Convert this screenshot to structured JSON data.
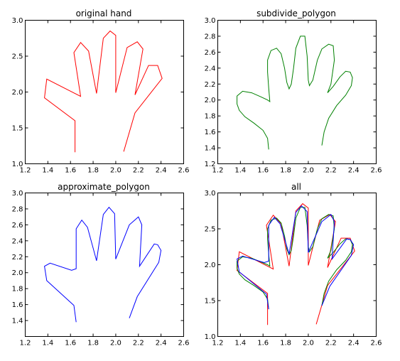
{
  "chart_data": [
    {
      "type": "line",
      "title": "original hand",
      "xlim": [
        1.2,
        2.6
      ],
      "ylim": [
        1.0,
        3.0
      ],
      "xticks": [
        "1.2",
        "1.4",
        "1.6",
        "1.8",
        "2.0",
        "2.2",
        "2.4",
        "2.6"
      ],
      "yticks": [
        "1.0",
        "1.5",
        "2.0",
        "2.5",
        "3.0"
      ],
      "series": [
        {
          "color": "#ff0000",
          "points": [
            [
              1.64,
              1.16
            ],
            [
              1.64,
              1.6
            ],
            [
              1.37,
              1.92
            ],
            [
              1.39,
              2.18
            ],
            [
              1.69,
              1.94
            ],
            [
              1.63,
              2.55
            ],
            [
              1.69,
              2.69
            ],
            [
              1.76,
              2.57
            ],
            [
              1.83,
              1.98
            ],
            [
              1.89,
              2.75
            ],
            [
              1.95,
              2.85
            ],
            [
              2.0,
              2.79
            ],
            [
              2.0,
              1.99
            ],
            [
              2.1,
              2.62
            ],
            [
              2.19,
              2.7
            ],
            [
              2.24,
              2.6
            ],
            [
              2.17,
              1.96
            ],
            [
              2.29,
              2.37
            ],
            [
              2.37,
              2.37
            ],
            [
              2.41,
              2.19
            ],
            [
              2.17,
              1.71
            ],
            [
              2.07,
              1.17
            ]
          ]
        }
      ]
    },
    {
      "type": "line",
      "title": "subdivide_polygon",
      "xlim": [
        1.2,
        2.6
      ],
      "ylim": [
        1.2,
        3.0
      ],
      "xticks": [
        "1.2",
        "1.4",
        "1.6",
        "1.8",
        "2.0",
        "2.2",
        "2.4",
        "2.6"
      ],
      "yticks": [
        "1.2",
        "1.4",
        "1.6",
        "1.8",
        "2.0",
        "2.2",
        "2.4",
        "2.6",
        "2.8",
        "3.0"
      ],
      "series": [
        {
          "color": "#008000",
          "points": [
            [
              1.65,
              1.38
            ],
            [
              1.64,
              1.52
            ],
            [
              1.6,
              1.62
            ],
            [
              1.52,
              1.71
            ],
            [
              1.44,
              1.79
            ],
            [
              1.39,
              1.87
            ],
            [
              1.37,
              1.95
            ],
            [
              1.37,
              2.05
            ],
            [
              1.42,
              2.11
            ],
            [
              1.5,
              2.09
            ],
            [
              1.58,
              2.04
            ],
            [
              1.64,
              2.0
            ],
            [
              1.66,
              1.98
            ],
            [
              1.65,
              2.15
            ],
            [
              1.64,
              2.35
            ],
            [
              1.64,
              2.5
            ],
            [
              1.67,
              2.62
            ],
            [
              1.72,
              2.65
            ],
            [
              1.76,
              2.58
            ],
            [
              1.79,
              2.4
            ],
            [
              1.81,
              2.22
            ],
            [
              1.83,
              2.14
            ],
            [
              1.85,
              2.2
            ],
            [
              1.87,
              2.4
            ],
            [
              1.89,
              2.65
            ],
            [
              1.93,
              2.8
            ],
            [
              1.97,
              2.8
            ],
            [
              1.99,
              2.55
            ],
            [
              2.0,
              2.25
            ],
            [
              2.01,
              2.18
            ],
            [
              2.04,
              2.25
            ],
            [
              2.08,
              2.5
            ],
            [
              2.12,
              2.64
            ],
            [
              2.18,
              2.7
            ],
            [
              2.22,
              2.68
            ],
            [
              2.23,
              2.5
            ],
            [
              2.2,
              2.2
            ],
            [
              2.17,
              2.09
            ],
            [
              2.22,
              2.17
            ],
            [
              2.28,
              2.29
            ],
            [
              2.33,
              2.36
            ],
            [
              2.37,
              2.35
            ],
            [
              2.39,
              2.28
            ],
            [
              2.38,
              2.18
            ],
            [
              2.33,
              2.06
            ],
            [
              2.25,
              1.93
            ],
            [
              2.18,
              1.77
            ],
            [
              2.14,
              1.6
            ],
            [
              2.12,
              1.43
            ]
          ]
        }
      ]
    },
    {
      "type": "line",
      "title": "approximate_polygon",
      "xlim": [
        1.2,
        2.6
      ],
      "ylim": [
        1.2,
        3.0
      ],
      "xticks": [
        "1.2",
        "1.4",
        "1.6",
        "1.8",
        "2.0",
        "2.2",
        "2.4",
        "2.6"
      ],
      "yticks": [
        "1.4",
        "1.6",
        "1.8",
        "2.0",
        "2.2",
        "2.4",
        "2.6",
        "2.8",
        "3.0"
      ],
      "series": [
        {
          "color": "#0000ff",
          "points": [
            [
              1.65,
              1.38
            ],
            [
              1.63,
              1.59
            ],
            [
              1.39,
              1.9
            ],
            [
              1.37,
              2.08
            ],
            [
              1.42,
              2.12
            ],
            [
              1.61,
              2.03
            ],
            [
              1.65,
              2.05
            ],
            [
              1.65,
              2.55
            ],
            [
              1.7,
              2.66
            ],
            [
              1.75,
              2.57
            ],
            [
              1.83,
              2.15
            ],
            [
              1.89,
              2.73
            ],
            [
              1.94,
              2.82
            ],
            [
              1.99,
              2.74
            ],
            [
              2.0,
              2.17
            ],
            [
              2.12,
              2.6
            ],
            [
              2.2,
              2.7
            ],
            [
              2.23,
              2.6
            ],
            [
              2.21,
              2.08
            ],
            [
              2.34,
              2.36
            ],
            [
              2.37,
              2.35
            ],
            [
              2.4,
              2.28
            ],
            [
              2.38,
              2.13
            ],
            [
              2.19,
              1.7
            ],
            [
              2.12,
              1.43
            ]
          ]
        }
      ]
    },
    {
      "type": "line",
      "title": "all",
      "xlim": [
        1.2,
        2.6
      ],
      "ylim": [
        1.0,
        3.0
      ],
      "xticks": [
        "1.2",
        "1.4",
        "1.6",
        "1.8",
        "2.0",
        "2.2",
        "2.4",
        "2.6"
      ],
      "yticks": [
        "1.0",
        "1.5",
        "2.0",
        "2.5",
        "3.0"
      ],
      "series": [
        {
          "color": "#ff0000",
          "ref": 0
        },
        {
          "color": "#008000",
          "ref": 1
        },
        {
          "color": "#0000ff",
          "ref": 2
        }
      ]
    }
  ]
}
